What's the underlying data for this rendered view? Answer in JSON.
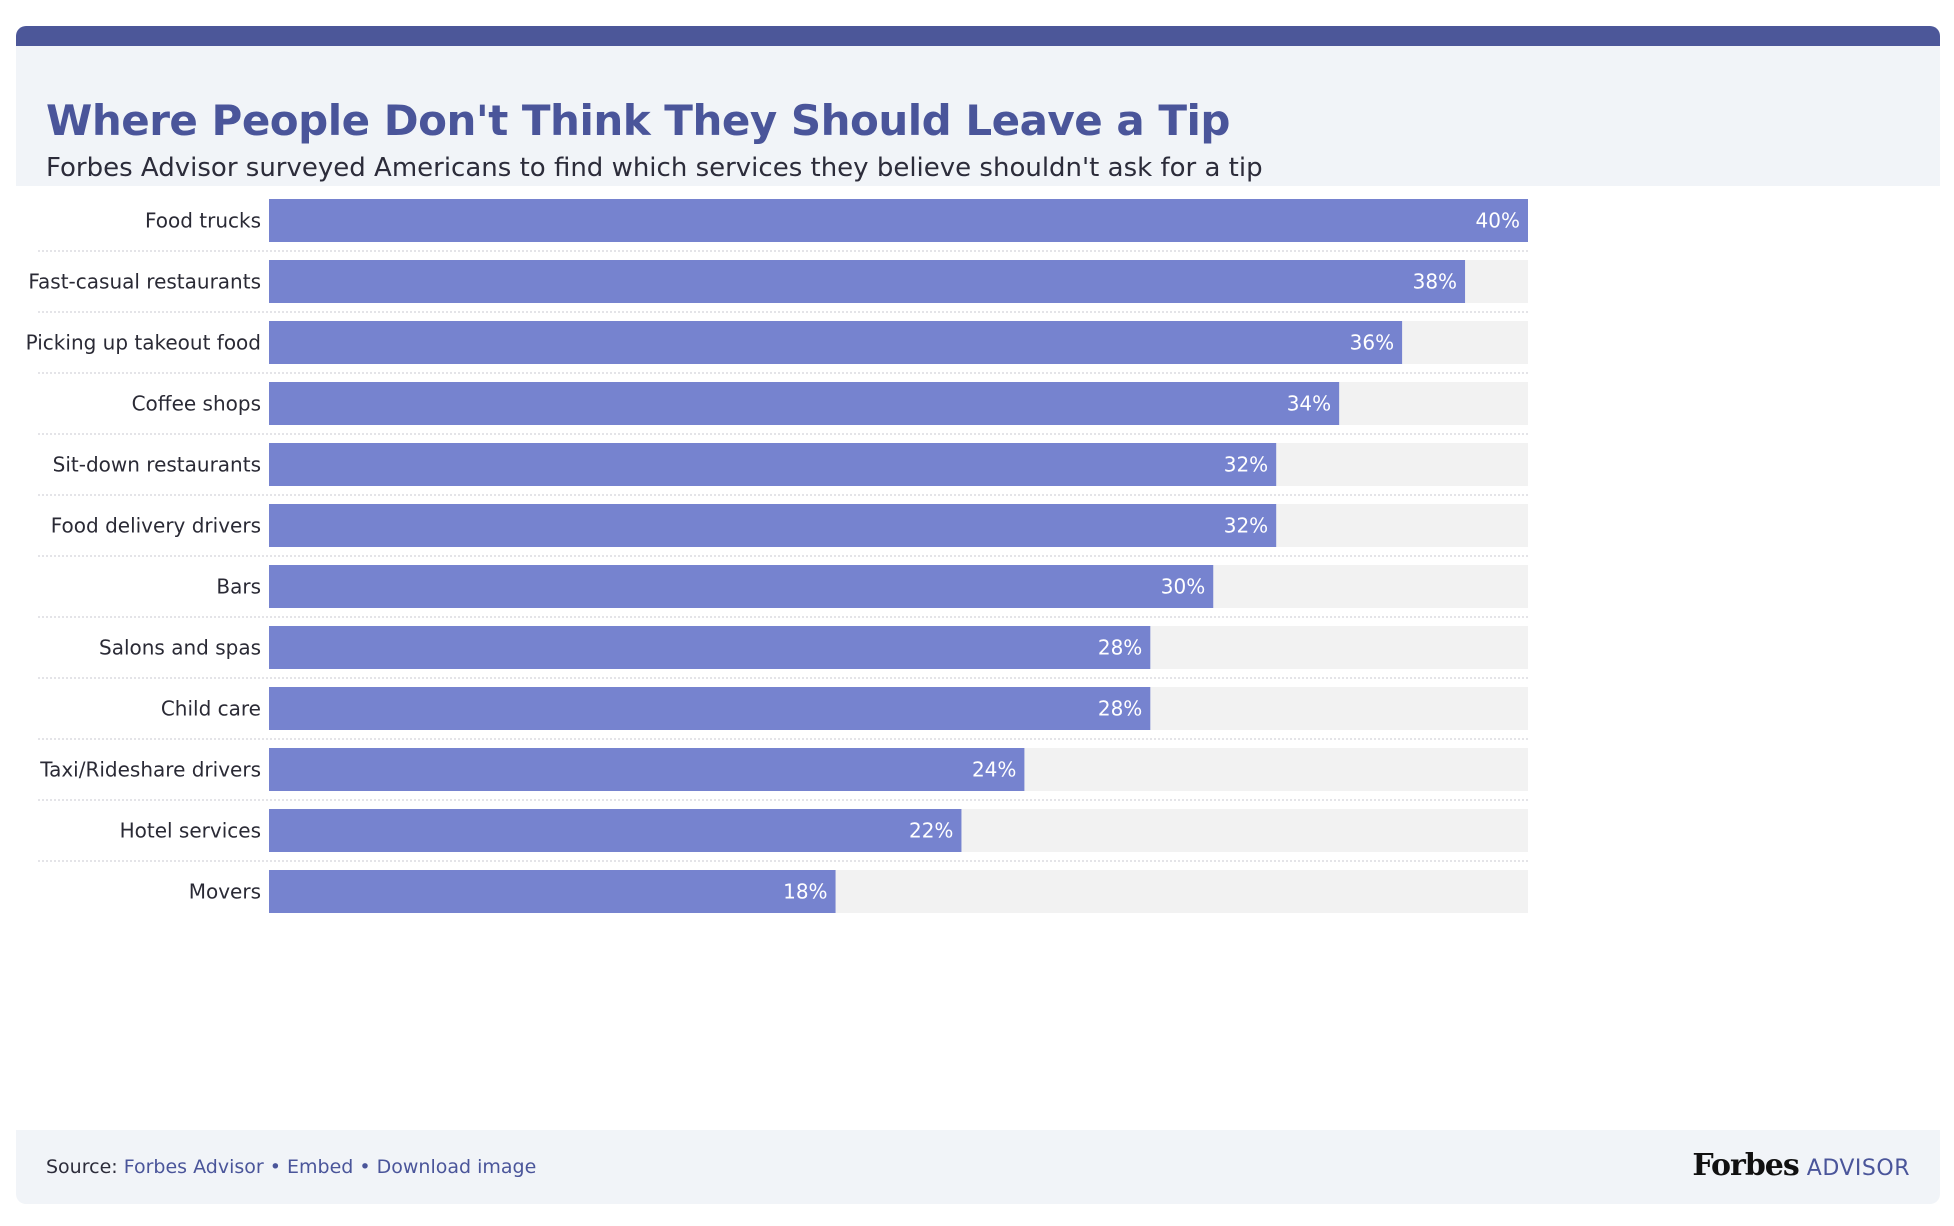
{
  "header": {
    "title": "Where People Don't Think They Should Leave a Tip",
    "subtitle": "Forbes Advisor surveyed Americans to find which services they believe shouldn't ask for a tip"
  },
  "colors": {
    "accent": "#4c5799",
    "title": "#4a559a",
    "bar": "#7683cf",
    "track": "#f2f2f2",
    "header_bg": "#f1f4f8"
  },
  "chart_data": {
    "type": "bar",
    "orientation": "horizontal",
    "categories": [
      "Food trucks",
      "Fast-casual restaurants",
      "Picking up takeout food",
      "Coffee shops",
      "Sit-down restaurants",
      "Food delivery drivers",
      "Bars",
      "Salons and spas",
      "Child care",
      "Taxi/Rideshare drivers",
      "Hotel services",
      "Movers"
    ],
    "values": [
      40,
      38,
      36,
      34,
      32,
      32,
      30,
      28,
      28,
      24,
      22,
      18
    ],
    "value_labels": [
      "40%",
      "38%",
      "36%",
      "34%",
      "32%",
      "32%",
      "30%",
      "28%",
      "28%",
      "24%",
      "22%",
      "18%"
    ],
    "xlim": [
      0,
      40
    ],
    "grid": false,
    "legend": "none",
    "title": "Where People Don't Think They Should Leave a Tip",
    "subtitle": "Forbes Advisor surveyed Americans to find which services they believe shouldn't ask for a tip"
  },
  "footer": {
    "source_label": "Source:",
    "source_link": "Forbes Advisor",
    "separator": "•",
    "embed_link": "Embed",
    "download_link": "Download image",
    "brand_name": "Forbes",
    "brand_suffix": "ADVISOR"
  }
}
